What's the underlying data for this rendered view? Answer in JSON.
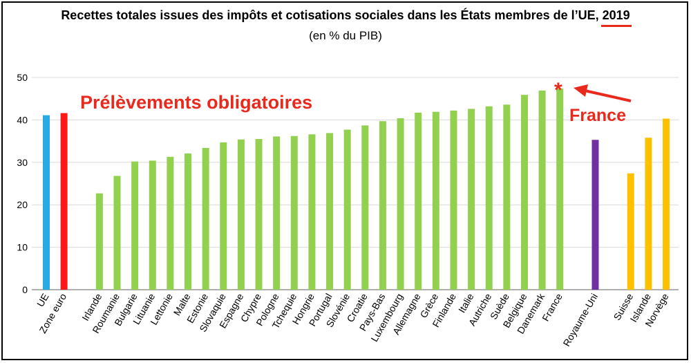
{
  "title_main": "Recettes totales issues des impôts et cotisations sociales dans les États membres de l’UE, ",
  "title_year": "2019",
  "subtitle": "(en % du PIB)",
  "annotation_label": "Prélèvements obligatoires",
  "france_callout": "France",
  "france_marker": "*",
  "colors": {
    "ue": "#29aae1",
    "zone_euro": "#ff1a1a",
    "eu_members": "#92d050",
    "uk": "#7030a0",
    "efta": "#ffc000",
    "annotation": "#e8291c",
    "grid": "#d9d9d9"
  },
  "chart_data": {
    "type": "bar",
    "title": "Recettes totales issues des impôts et cotisations sociales dans les États membres de l’UE, 2019",
    "subtitle": "(en % du PIB)",
    "ylim": [
      0,
      50
    ],
    "yticks": [
      0,
      10,
      20,
      30,
      40,
      50
    ],
    "grid": true,
    "legend": "none",
    "categories": [
      "UE",
      "Zone euro",
      "Irlande",
      "Roumanie",
      "Bulgarie",
      "Lituanie",
      "Lettonie",
      "Malte",
      "Estonie",
      "Slovaquie",
      "Espagne",
      "Chypre",
      "Pologne",
      "Tchequie",
      "Hongrie",
      "Portugal",
      "Slovénie",
      "Croatie",
      "Pays-Bas",
      "Luxembourg",
      "Allemagne",
      "Grèce",
      "Finlande",
      "Italie",
      "Autriche",
      "Suède",
      "Belgique",
      "Danemark",
      "France",
      "Royaume-Uni",
      "Suisse",
      "Islande",
      "Norvège"
    ],
    "values": [
      41.1,
      41.6,
      22.7,
      26.8,
      30.2,
      30.4,
      31.3,
      32.1,
      33.4,
      34.7,
      35.4,
      35.5,
      36.1,
      36.2,
      36.6,
      36.9,
      37.7,
      38.7,
      39.7,
      40.4,
      41.7,
      41.9,
      42.2,
      42.6,
      43.2,
      43.6,
      45.9,
      46.9,
      47.4,
      35.3,
      27.4,
      35.8,
      40.3
    ],
    "groups": [
      "ue",
      "zone_euro",
      "eu_members",
      "eu_members",
      "eu_members",
      "eu_members",
      "eu_members",
      "eu_members",
      "eu_members",
      "eu_members",
      "eu_members",
      "eu_members",
      "eu_members",
      "eu_members",
      "eu_members",
      "eu_members",
      "eu_members",
      "eu_members",
      "eu_members",
      "eu_members",
      "eu_members",
      "eu_members",
      "eu_members",
      "eu_members",
      "eu_members",
      "eu_members",
      "eu_members",
      "eu_members",
      "eu_members",
      "uk",
      "efta",
      "efta",
      "efta"
    ],
    "gaps_after": [
      1,
      28,
      29
    ]
  }
}
